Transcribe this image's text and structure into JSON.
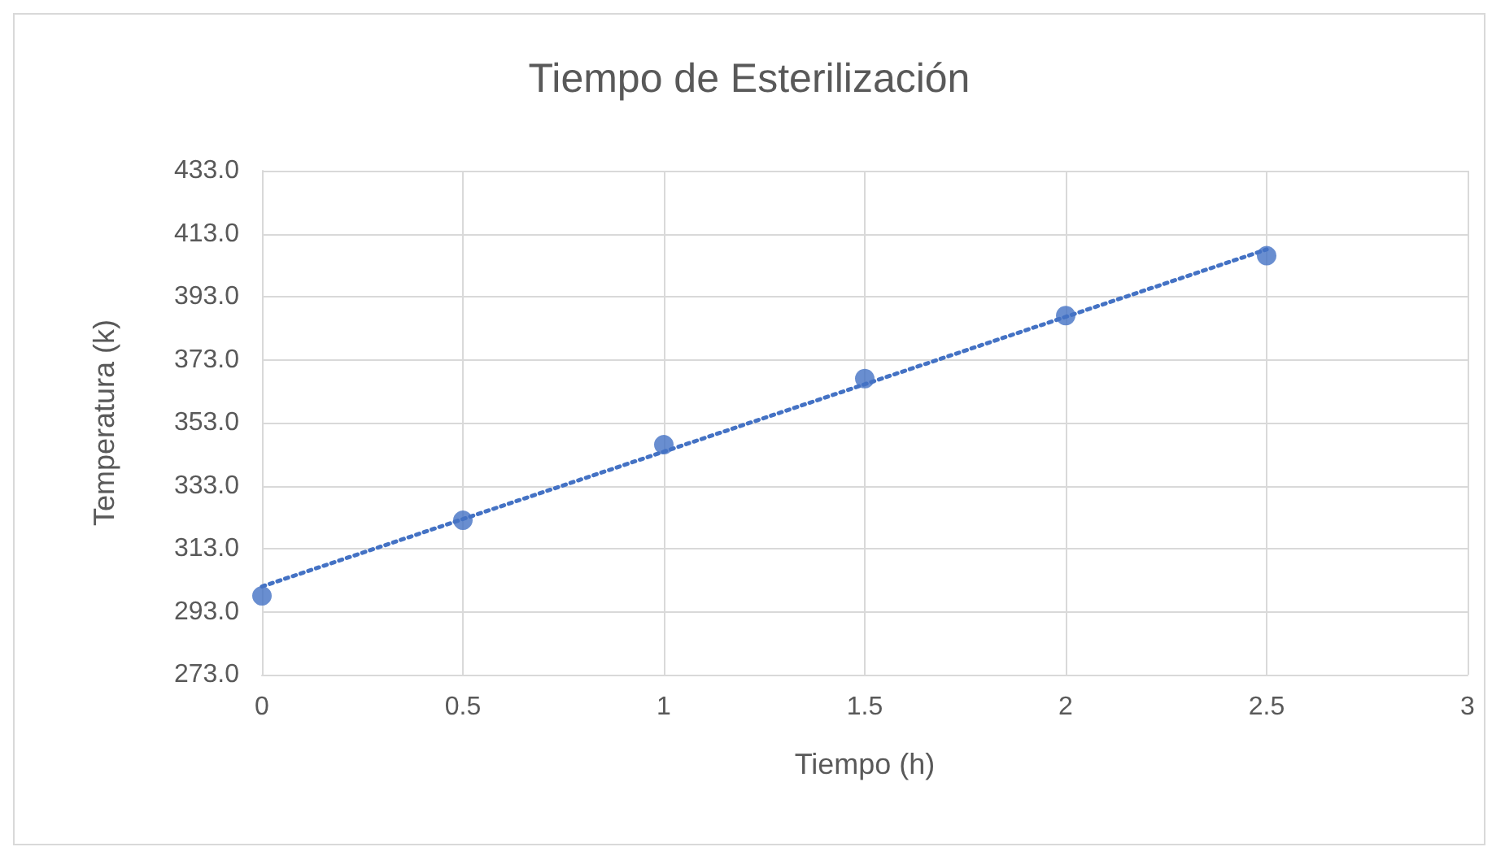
{
  "chart_data": {
    "type": "scatter",
    "title": "Tiempo de Esterilización",
    "xlabel": "Tiempo (h)",
    "ylabel": "Temperatura (k)",
    "series": [
      {
        "color": "#4472c4",
        "x": [
          0,
          0.5,
          1,
          1.5,
          2,
          2.5
        ],
        "values": [
          298,
          322,
          346,
          367,
          387,
          406
        ],
        "marker": "circle"
      },
      {
        "type": "line",
        "color": "#4472c4",
        "x": [
          0,
          2.5
        ],
        "values": [
          301,
          408
        ],
        "line_style": "dotted",
        "marker": "none"
      }
    ],
    "xlim": [
      0,
      3
    ],
    "xticks": [
      0,
      0.5,
      1,
      1.5,
      2,
      2.5,
      3
    ],
    "ylim": [
      273,
      433
    ],
    "yticks": [
      {
        "value": 273,
        "label": "273.0"
      },
      {
        "value": 293,
        "label": "293.0"
      },
      {
        "value": 313,
        "label": "313.0"
      },
      {
        "value": 333,
        "label": "333.0"
      },
      {
        "value": 353,
        "label": "353.0"
      },
      {
        "value": 373,
        "label": "373.0"
      },
      {
        "value": 393,
        "label": "393.0"
      },
      {
        "value": 413,
        "label": "413.0"
      },
      {
        "value": 433,
        "label": "433.0"
      }
    ],
    "grid": true
  }
}
